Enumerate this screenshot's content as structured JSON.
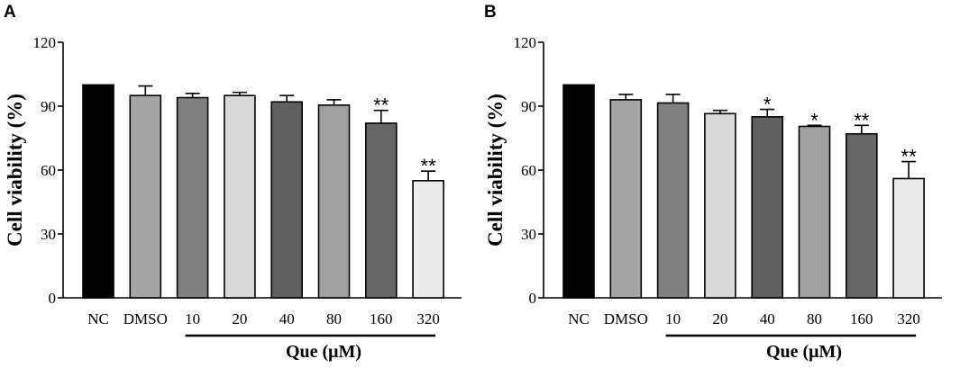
{
  "chart_data": [
    {
      "panel": "A",
      "type": "bar",
      "categories": [
        "NC",
        "DMSO",
        "10",
        "20",
        "40",
        "80",
        "160",
        "320"
      ],
      "values": [
        100,
        95,
        94,
        95,
        92,
        90.5,
        82,
        55
      ],
      "errors": [
        0,
        4.5,
        2,
        1.5,
        3,
        2.5,
        6,
        4.5
      ],
      "significance": [
        "",
        "",
        "",
        "",
        "",
        "",
        "**",
        "**"
      ],
      "colors": [
        "#000000",
        "#a6a6a6",
        "#808080",
        "#d9d9d9",
        "#5f5f5f",
        "#a0a0a0",
        "#666666",
        "#ebebeb"
      ],
      "title": "",
      "xlabel": "Que (μM)",
      "ylabel": "Cell viability (%)",
      "ylim": [
        0,
        120
      ],
      "yticks": [
        "0",
        "30",
        "60",
        "90",
        "120"
      ],
      "grid": false
    },
    {
      "panel": "B",
      "type": "bar",
      "categories": [
        "NC",
        "DMSO",
        "10",
        "20",
        "40",
        "80",
        "160",
        "320"
      ],
      "values": [
        100,
        93,
        91.5,
        86.5,
        85,
        80.5,
        77,
        56
      ],
      "errors": [
        0,
        2.5,
        4,
        1.5,
        3.5,
        0.5,
        4,
        8
      ],
      "significance": [
        "",
        "",
        "",
        "",
        "*",
        "*",
        "**",
        "**"
      ],
      "colors": [
        "#000000",
        "#a6a6a6",
        "#808080",
        "#d9d9d9",
        "#5f5f5f",
        "#a0a0a0",
        "#666666",
        "#ebebeb"
      ],
      "title": "",
      "xlabel": "Que (μM)",
      "ylabel": "Cell viability (%)",
      "ylim": [
        0,
        120
      ],
      "yticks": [
        "0",
        "30",
        "60",
        "90",
        "120"
      ],
      "grid": false
    }
  ]
}
